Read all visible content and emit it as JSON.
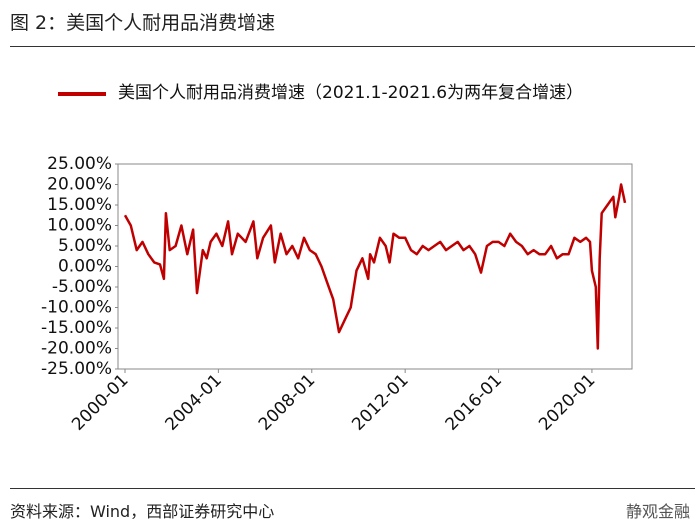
{
  "header": {
    "title": "图 2：美国个人耐用品消费增速"
  },
  "chart_data": {
    "type": "line",
    "x": [
      "2000-01",
      "2000-04",
      "2000-07",
      "2000-10",
      "2001-01",
      "2001-04",
      "2001-07",
      "2001-09",
      "2001-10",
      "2001-12",
      "2002-03",
      "2002-06",
      "2002-09",
      "2002-12",
      "2003-02",
      "2003-05",
      "2003-07",
      "2003-09",
      "2003-12",
      "2004-03",
      "2004-06",
      "2004-08",
      "2004-11",
      "2005-03",
      "2005-07",
      "2005-09",
      "2005-12",
      "2006-04",
      "2006-06",
      "2006-09",
      "2006-12",
      "2007-03",
      "2007-06",
      "2007-09",
      "2007-12",
      "2008-03",
      "2008-06",
      "2008-09",
      "2008-12",
      "2009-03",
      "2009-06",
      "2009-09",
      "2009-12",
      "2010-03",
      "2010-06",
      "2010-07",
      "2010-09",
      "2010-12",
      "2011-03",
      "2011-05",
      "2011-07",
      "2011-10",
      "2012-01",
      "2012-04",
      "2012-07",
      "2012-10",
      "2013-01",
      "2013-04",
      "2013-07",
      "2013-10",
      "2014-01",
      "2014-04",
      "2014-07",
      "2014-10",
      "2015-01",
      "2015-04",
      "2015-07",
      "2015-10",
      "2016-01",
      "2016-04",
      "2016-07",
      "2016-10",
      "2017-01",
      "2017-04",
      "2017-07",
      "2017-10",
      "2018-01",
      "2018-04",
      "2018-07",
      "2018-10",
      "2019-01",
      "2019-04",
      "2019-07",
      "2019-10",
      "2019-12",
      "2020-01",
      "2020-03",
      "2020-04",
      "2020-05",
      "2020-06",
      "2020-09",
      "2020-12",
      "2021-01",
      "2021-03",
      "2021-04",
      "2021-06"
    ],
    "series": [
      {
        "name": "美国个人耐用品消费增速（2021.1-2021.6为两年复合增速）",
        "color": "#c00000",
        "values": [
          12.5,
          10,
          4,
          6,
          3,
          1,
          0.5,
          -3,
          13,
          4,
          5,
          10,
          3,
          9,
          -6.5,
          4,
          2,
          6,
          8,
          5,
          11,
          3,
          8,
          6,
          11,
          2,
          7,
          10,
          1,
          8,
          3,
          5,
          2,
          7,
          4,
          3,
          0,
          -4,
          -8,
          -16,
          -13,
          -10,
          -1,
          2,
          -3,
          3,
          1,
          7,
          5,
          1,
          8,
          7,
          7,
          4,
          3,
          5,
          4,
          5,
          6,
          4,
          5,
          6,
          4,
          5,
          3,
          -1.5,
          5,
          6,
          6,
          5,
          8,
          6,
          5,
          3,
          4,
          3,
          3,
          5,
          2,
          3,
          3,
          7,
          6,
          7,
          6,
          -1,
          -5,
          -20,
          2,
          13,
          15,
          17,
          12,
          17,
          20,
          15.5
        ]
      }
    ],
    "xlim": [
      "2000-01",
      "2021-06"
    ],
    "xticks": [
      "2000-01",
      "2004-01",
      "2008-01",
      "2012-01",
      "2016-01",
      "2020-01"
    ],
    "ylim": [
      -25,
      25
    ],
    "yticks": [
      {
        "value": 25,
        "label": "25.00%"
      },
      {
        "value": 20,
        "label": "20.00%"
      },
      {
        "value": 15,
        "label": "15.00%"
      },
      {
        "value": 10,
        "label": "10.00%"
      },
      {
        "value": 5,
        "label": "5.00%"
      },
      {
        "value": 0,
        "label": "0.00%"
      },
      {
        "value": -5,
        "label": "-5.00%"
      },
      {
        "value": -10,
        "label": "-10.00%"
      },
      {
        "value": -15,
        "label": "-15.00%"
      },
      {
        "value": -20,
        "label": "-20.00%"
      },
      {
        "value": -25,
        "label": "-25.00%"
      }
    ],
    "grid": false
  },
  "footer": {
    "source": "资料来源：Wind，西部证券研究中心",
    "watermark": "静观金融"
  }
}
